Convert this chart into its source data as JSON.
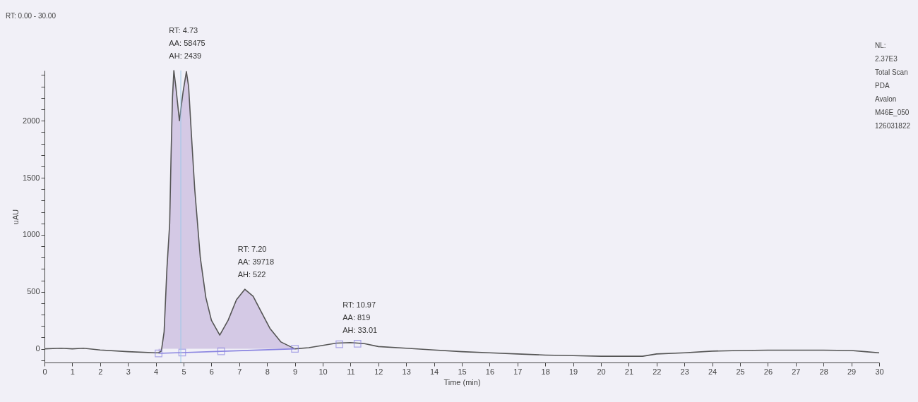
{
  "chart_data": {
    "type": "line",
    "xlabel": "Time (min)",
    "ylabel": "uAU",
    "xlim": [
      0,
      30
    ],
    "xticks": [
      0,
      1,
      2,
      3,
      4,
      5,
      6,
      7,
      8,
      9,
      10,
      11,
      12,
      13,
      14,
      15,
      16,
      17,
      18,
      19,
      20,
      21,
      22,
      23,
      24,
      25,
      26,
      27,
      28,
      29,
      30
    ],
    "ylim": [
      -120,
      2440
    ],
    "yticks": [
      {
        "value": -100,
        "label": null
      },
      0,
      {
        "value": 100,
        "label": null
      },
      {
        "value": 200,
        "label": null
      },
      {
        "value": 300,
        "label": null
      },
      {
        "value": 400,
        "label": null
      },
      500,
      {
        "value": 600,
        "label": null
      },
      {
        "value": 700,
        "label": null
      },
      {
        "value": 800,
        "label": null
      },
      {
        "value": 900,
        "label": null
      },
      1000,
      {
        "value": 1100,
        "label": null
      },
      {
        "value": 1200,
        "label": null
      },
      {
        "value": 1300,
        "label": null
      },
      {
        "value": 1400,
        "label": null
      },
      1500,
      {
        "value": 1600,
        "label": null
      },
      {
        "value": 1700,
        "label": null
      },
      {
        "value": 1800,
        "label": null
      },
      {
        "value": 1900,
        "label": null
      },
      2000,
      {
        "value": 2100,
        "label": null
      },
      {
        "value": 2200,
        "label": null
      },
      {
        "value": 2300,
        "label": null
      },
      {
        "value": 2400,
        "label": null
      }
    ],
    "grid": false,
    "series": [
      {
        "type": "area",
        "color": "#cdbfe0",
        "x": [
          4.1,
          4.2,
          4.3,
          4.4,
          4.5,
          4.55,
          4.6,
          4.65,
          4.72,
          4.85,
          4.98,
          5.1,
          5.18,
          5.3,
          5.4,
          5.5,
          5.6,
          5.8,
          6.0,
          6.3,
          6.6,
          6.9,
          7.2,
          7.5,
          7.8,
          8.1,
          8.5,
          9.0
        ],
        "values": [
          -35,
          -20,
          150,
          700,
          1100,
          1700,
          2200,
          2439,
          2300,
          2000,
          2250,
          2430,
          2300,
          1800,
          1400,
          1100,
          800,
          450,
          250,
          120,
          250,
          430,
          522,
          460,
          320,
          180,
          60,
          0
        ]
      },
      {
        "color": "#555555",
        "x": [
          0,
          0.6,
          1,
          1.4,
          2,
          3,
          4,
          4.1,
          4.2,
          4.3,
          4.4,
          4.5,
          4.55,
          4.6,
          4.65,
          4.72,
          4.85,
          4.98,
          5.1,
          5.18,
          5.3,
          5.4,
          5.5,
          5.6,
          5.8,
          6.0,
          6.3,
          6.6,
          6.9,
          7.2,
          7.5,
          7.8,
          8.1,
          8.5,
          9.0,
          9.5,
          10.0,
          10.5,
          11.0,
          11.5,
          12.0,
          13,
          14,
          15,
          16,
          17,
          18,
          19,
          20,
          21,
          21.5,
          22,
          23,
          24,
          25,
          26,
          27,
          28,
          29,
          29.5,
          30
        ],
        "values": [
          0,
          5,
          0,
          5,
          -10,
          -25,
          -35,
          -35,
          -20,
          150,
          700,
          1100,
          1700,
          2200,
          2439,
          2300,
          2000,
          2250,
          2430,
          2300,
          1800,
          1400,
          1100,
          800,
          450,
          250,
          120,
          250,
          430,
          522,
          460,
          320,
          180,
          60,
          0,
          10,
          30,
          50,
          55,
          45,
          20,
          5,
          -10,
          -25,
          -35,
          -45,
          -55,
          -60,
          -65,
          -65,
          -65,
          -45,
          -35,
          -20,
          -15,
          -12,
          -12,
          -12,
          -15,
          -25,
          -35
        ]
      },
      {
        "type": "line",
        "color": "#8a84e0",
        "x": [
          4.1,
          4.95,
          6.35,
          9.0
        ],
        "values": [
          -40,
          -33,
          -22,
          0
        ]
      },
      {
        "type": "scatter",
        "marker": "square",
        "color": "#8a84e0",
        "x": [
          4.1,
          4.95,
          6.35,
          9.0,
          10.6,
          11.25
        ],
        "values": [
          -40,
          -33,
          -22,
          0,
          40,
          45
        ]
      }
    ],
    "ref_lines": [
      {
        "axis": "x",
        "value": 4.9,
        "color": "#9cc8e8"
      }
    ],
    "annotations": [
      "RT: 0.00 - 30.00",
      "NL:\n2.37E3\nTotal Scan\nPDA\nAvalon\nM46E_050\n126031822",
      {
        "text": "RT: 4.73\nAA: 58475\nAH: 2439",
        "x": 4.73,
        "y": 2439
      },
      {
        "text": "RT: 7.20\nAA: 39718\nAH: 522",
        "x": 7.2,
        "y": 522
      },
      {
        "text": "RT: 10.97\nAA: 819\nAH: 33.01",
        "x": 10.97,
        "y": 33.01
      }
    ]
  }
}
